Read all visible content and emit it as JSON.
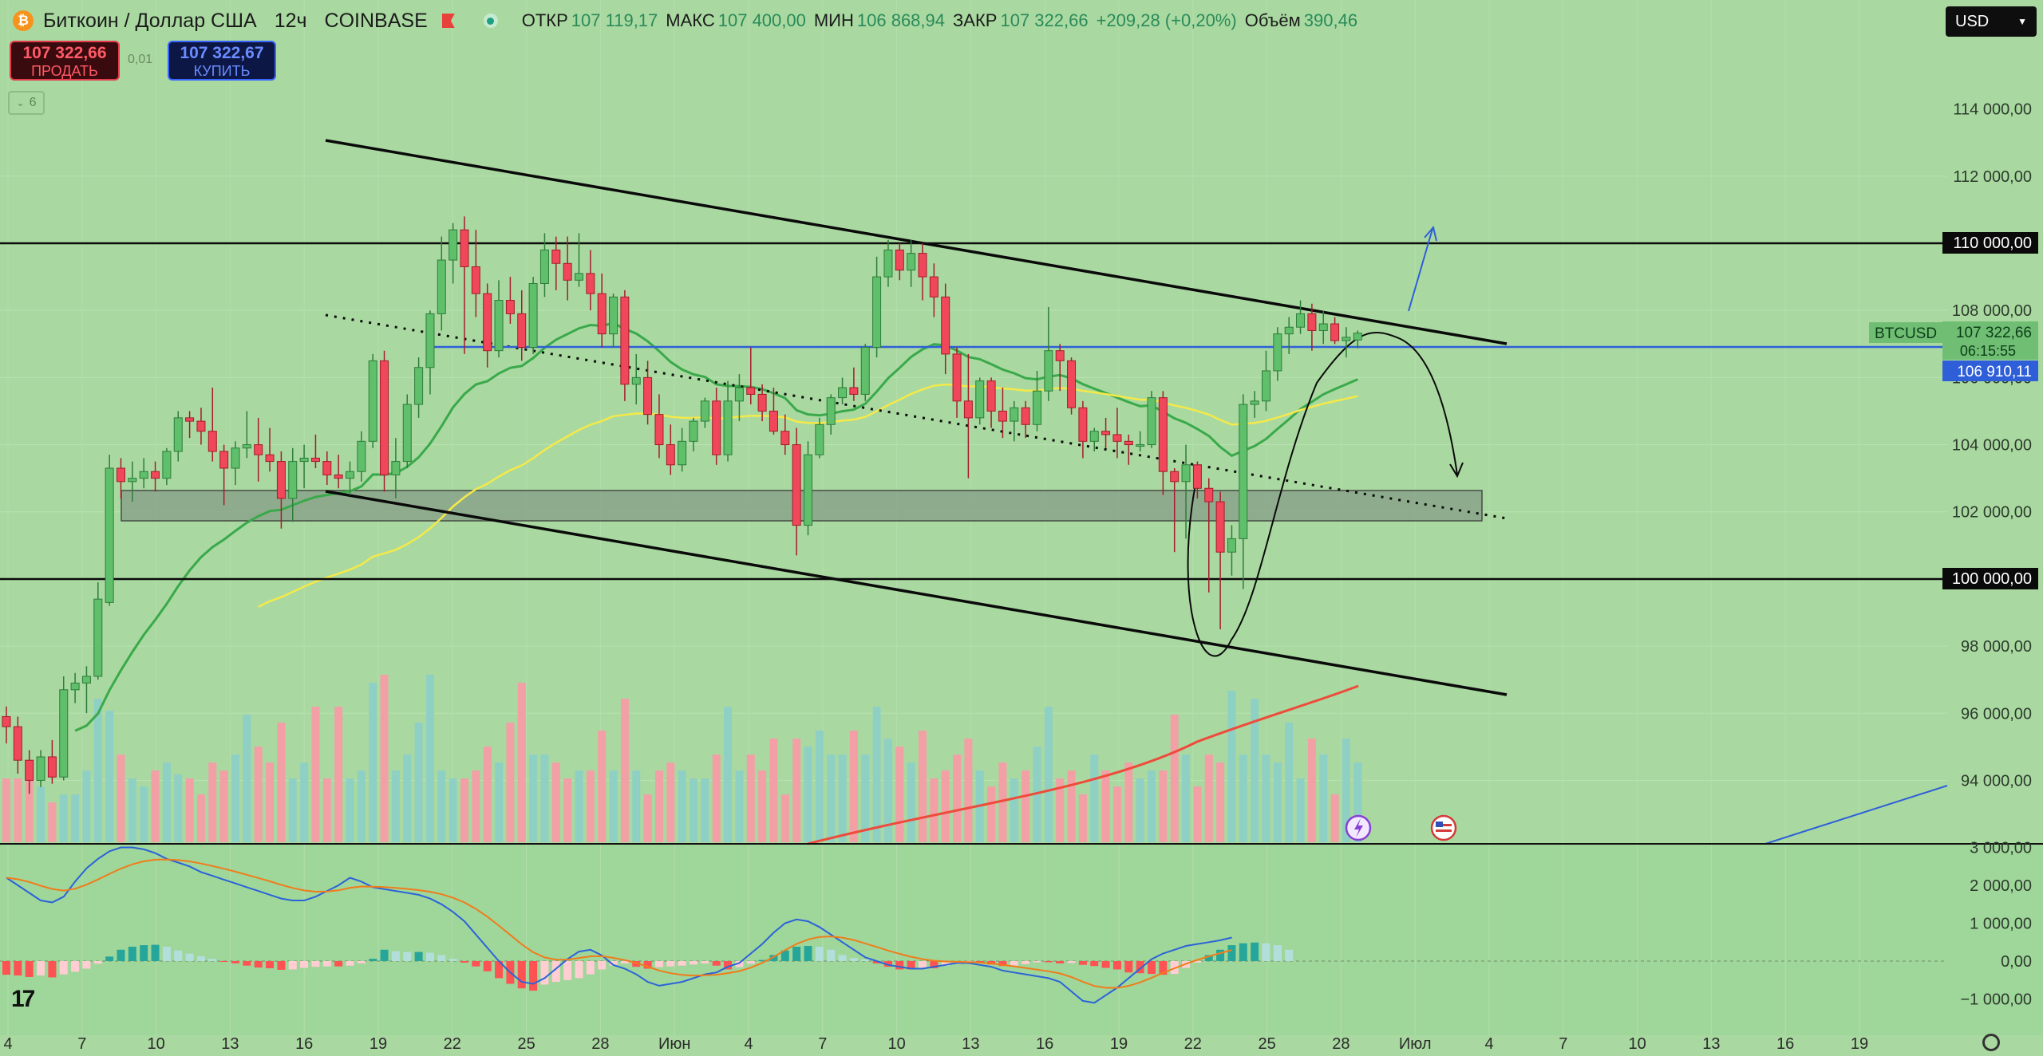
{
  "header": {
    "symbol_icon": "bitcoin-icon",
    "title": "Биткоин / Доллар США",
    "interval": "12ч",
    "exchange": "COINBASE",
    "open_label": "ОТКР",
    "open": "107 119,17",
    "high_label": "МАКС",
    "high": "107 400,00",
    "low_label": "МИН",
    "low": "106 868,94",
    "close_label": "ЗАКР",
    "close": "107 322,66",
    "change": "+209,28 (+0,20%)",
    "volume_label": "Объём",
    "volume": "390,46"
  },
  "orders": {
    "sell_price": "107 322,66",
    "sell_label": "ПРОДАТЬ",
    "spread": "0,01",
    "buy_price": "107 322,67",
    "buy_label": "КУПИТЬ"
  },
  "indicators_count": "6",
  "currency": "USD",
  "colors": {
    "up": "#5fbf6b",
    "down": "#f0475a",
    "ema_green": "#3aa94b",
    "ema_yellow": "#f5e94a",
    "ema_red": "#ee4b3b",
    "blue_line": "#2f5fd8",
    "macd": "#2b63d9",
    "signal": "#f07c1a",
    "bg": "#a9d9a0"
  },
  "chart_data": {
    "type": "candlestick",
    "interval": "12h",
    "x_ticks": [
      "4",
      "7",
      "10",
      "13",
      "16",
      "19",
      "22",
      "25",
      "28",
      "Июн",
      "4",
      "7",
      "10",
      "13",
      "16",
      "19",
      "22",
      "25",
      "28",
      "Июл",
      "4",
      "7",
      "10",
      "13",
      "16",
      "19"
    ],
    "y_ticks": [
      "110 000,00",
      "108 000,00",
      "106 000,00",
      "104 000,00",
      "102 000,00",
      "100 000,00",
      "98 000,00",
      "96 000,00",
      "94 000,00"
    ],
    "ylim": [
      92500,
      116000
    ],
    "ohlc": [
      [
        95900,
        96200,
        95100,
        95600
      ],
      [
        95600,
        95900,
        94200,
        94600
      ],
      [
        94600,
        94900,
        93600,
        94000
      ],
      [
        94000,
        94900,
        93800,
        94700
      ],
      [
        94700,
        95200,
        93900,
        94100
      ],
      [
        94100,
        97100,
        94000,
        96700
      ],
      [
        96700,
        97200,
        96300,
        96900
      ],
      [
        96900,
        97400,
        96000,
        97100
      ],
      [
        97100,
        99900,
        97000,
        99400
      ],
      [
        99300,
        103700,
        99200,
        103300
      ],
      [
        103300,
        103600,
        102400,
        102900
      ],
      [
        102900,
        103500,
        102300,
        103000
      ],
      [
        103000,
        103600,
        102700,
        103200
      ],
      [
        103200,
        103500,
        102600,
        103000
      ],
      [
        103000,
        103900,
        102800,
        103800
      ],
      [
        103800,
        105000,
        103500,
        104800
      ],
      [
        104800,
        105000,
        104200,
        104700
      ],
      [
        104700,
        105100,
        104000,
        104400
      ],
      [
        104400,
        105700,
        103500,
        103800
      ],
      [
        103800,
        104000,
        102200,
        103300
      ],
      [
        103300,
        104100,
        102800,
        103900
      ],
      [
        103900,
        105000,
        103600,
        104000
      ],
      [
        104000,
        104800,
        102900,
        103700
      ],
      [
        103700,
        104500,
        103200,
        103500
      ],
      [
        103500,
        103800,
        101500,
        102400
      ],
      [
        102400,
        103900,
        101700,
        103500
      ],
      [
        103500,
        104000,
        102700,
        103600
      ],
      [
        103600,
        104300,
        103300,
        103500
      ],
      [
        103500,
        103800,
        102800,
        103100
      ],
      [
        103100,
        103700,
        102700,
        103000
      ],
      [
        103000,
        103500,
        102500,
        103200
      ],
      [
        103200,
        104400,
        102900,
        104100
      ],
      [
        104100,
        106700,
        103900,
        106500
      ],
      [
        106500,
        106800,
        102600,
        103100
      ],
      [
        103100,
        104200,
        102400,
        103500
      ],
      [
        103500,
        105500,
        103300,
        105200
      ],
      [
        105200,
        106600,
        104800,
        106300
      ],
      [
        106300,
        108000,
        105500,
        107900
      ],
      [
        107900,
        110200,
        107400,
        109500
      ],
      [
        109500,
        110600,
        108800,
        110400
      ],
      [
        110400,
        110800,
        106700,
        109300
      ],
      [
        109300,
        110400,
        107800,
        108500
      ],
      [
        108500,
        108800,
        106300,
        106800
      ],
      [
        106800,
        108900,
        106600,
        108300
      ],
      [
        108300,
        109000,
        107600,
        107900
      ],
      [
        107900,
        108600,
        106500,
        106900
      ],
      [
        106900,
        109000,
        106700,
        108800
      ],
      [
        108800,
        110300,
        108400,
        109800
      ],
      [
        109800,
        110200,
        108600,
        109400
      ],
      [
        109400,
        110200,
        108300,
        108900
      ],
      [
        108900,
        110300,
        108700,
        109100
      ],
      [
        109100,
        109800,
        108000,
        108500
      ],
      [
        108500,
        109100,
        106900,
        107300
      ],
      [
        107300,
        108500,
        106900,
        108400
      ],
      [
        108400,
        108600,
        105300,
        105800
      ],
      [
        105800,
        106700,
        105200,
        106000
      ],
      [
        106000,
        106500,
        104600,
        104900
      ],
      [
        104900,
        105500,
        103600,
        104000
      ],
      [
        104000,
        104600,
        103100,
        103400
      ],
      [
        103400,
        104500,
        103200,
        104100
      ],
      [
        104100,
        104800,
        103800,
        104700
      ],
      [
        104700,
        105400,
        104500,
        105300
      ],
      [
        105300,
        105700,
        103400,
        103700
      ],
      [
        103700,
        105900,
        103500,
        105300
      ],
      [
        105300,
        106100,
        104700,
        105700
      ],
      [
        105700,
        106900,
        105200,
        105500
      ],
      [
        105500,
        105800,
        104700,
        105000
      ],
      [
        105000,
        105700,
        104300,
        104400
      ],
      [
        104400,
        104900,
        103700,
        104000
      ],
      [
        104000,
        104500,
        100700,
        101600
      ],
      [
        101600,
        104100,
        101300,
        103700
      ],
      [
        103700,
        104800,
        103600,
        104600
      ],
      [
        104600,
        105500,
        104300,
        105400
      ],
      [
        105400,
        106000,
        105200,
        105700
      ],
      [
        105700,
        106300,
        105300,
        105500
      ],
      [
        105500,
        107000,
        105300,
        106900
      ],
      [
        106900,
        109600,
        106600,
        109000
      ],
      [
        109000,
        110100,
        108700,
        109800
      ],
      [
        109800,
        110000,
        108900,
        109200
      ],
      [
        109200,
        110100,
        108700,
        109700
      ],
      [
        109700,
        110000,
        108300,
        109000
      ],
      [
        109000,
        109400,
        107800,
        108400
      ],
      [
        108400,
        108800,
        106100,
        106700
      ],
      [
        106700,
        106900,
        104800,
        105300
      ],
      [
        105300,
        106700,
        103000,
        104800
      ],
      [
        104800,
        106000,
        104600,
        105900
      ],
      [
        105900,
        106000,
        104500,
        105000
      ],
      [
        105000,
        105700,
        104200,
        104700
      ],
      [
        104700,
        105300,
        104100,
        105100
      ],
      [
        105100,
        105300,
        104200,
        104600
      ],
      [
        104600,
        106200,
        104400,
        105600
      ],
      [
        105600,
        108100,
        105300,
        106800
      ],
      [
        106800,
        107000,
        105600,
        106500
      ],
      [
        106500,
        106600,
        104900,
        105100
      ],
      [
        105100,
        105300,
        103600,
        104100
      ],
      [
        104100,
        104500,
        103800,
        104400
      ],
      [
        104400,
        104800,
        103900,
        104300
      ],
      [
        104300,
        105100,
        103600,
        104100
      ],
      [
        104100,
        104300,
        103400,
        104000
      ],
      [
        104000,
        104400,
        103800,
        104000
      ],
      [
        104000,
        105600,
        103900,
        105400
      ],
      [
        105400,
        105600,
        102500,
        103200
      ],
      [
        103200,
        103300,
        100800,
        102900
      ],
      [
        102900,
        104000,
        101200,
        103400
      ],
      [
        103400,
        103500,
        102400,
        102700
      ],
      [
        102700,
        103000,
        99600,
        102300
      ],
      [
        102300,
        102600,
        98500,
        100800
      ],
      [
        100800,
        101600,
        100100,
        101200
      ],
      [
        101200,
        105500,
        99700,
        105200
      ],
      [
        105200,
        105600,
        104800,
        105300
      ],
      [
        105300,
        106800,
        105000,
        106200
      ],
      [
        106200,
        107500,
        105900,
        107300
      ],
      [
        107300,
        107800,
        106700,
        107500
      ],
      [
        107500,
        108300,
        107300,
        107900
      ],
      [
        107900,
        108200,
        106800,
        107400
      ],
      [
        107400,
        108000,
        107000,
        107600
      ],
      [
        107600,
        107800,
        107000,
        107100
      ],
      [
        107100,
        107500,
        106600,
        107200
      ],
      [
        107119,
        107400,
        106869,
        107323
      ]
    ],
    "volume": [
      16,
      16,
      18,
      14,
      10,
      12,
      12,
      18,
      36,
      33,
      22,
      16,
      14,
      18,
      20,
      17,
      16,
      12,
      20,
      18,
      22,
      32,
      24,
      20,
      30,
      16,
      20,
      34,
      16,
      34,
      16,
      18,
      40,
      42,
      18,
      22,
      30,
      42,
      18,
      16,
      16,
      18,
      24,
      20,
      30,
      40,
      22,
      22,
      20,
      16,
      18,
      18,
      28,
      18,
      36,
      18,
      12,
      18,
      20,
      18,
      16,
      16,
      22,
      34,
      18,
      22,
      18,
      26,
      12,
      26,
      24,
      28,
      22,
      22,
      28,
      22,
      34,
      26,
      24,
      20,
      28,
      16,
      18,
      22,
      26,
      18,
      14,
      20,
      16,
      18,
      24,
      34,
      16,
      18,
      12,
      22,
      18,
      14,
      20,
      16,
      18,
      18,
      32,
      22,
      14,
      22,
      20,
      38,
      22,
      36,
      22,
      20,
      30,
      16,
      26,
      22,
      12,
      26,
      20,
      18
    ],
    "macd": [
      -360,
      -380,
      -420,
      -380,
      -430,
      -350,
      -280,
      -200,
      -70,
      120,
      300,
      380,
      420,
      430,
      380,
      280,
      200,
      130,
      60,
      -20,
      -60,
      -120,
      -170,
      -190,
      -230,
      -220,
      -180,
      -150,
      -140,
      -140,
      -120,
      -60,
      60,
      300,
      260,
      240,
      240,
      220,
      160,
      60,
      -40,
      -140,
      -270,
      -450,
      -600,
      -720,
      -780,
      -620,
      -550,
      -500,
      -450,
      -350,
      -220,
      -120,
      -60,
      -150,
      -200,
      -160,
      -140,
      -120,
      -90,
      -60,
      -120,
      -220,
      -160,
      -70,
      30,
      160,
      280,
      380,
      400,
      380,
      300,
      160,
      80,
      40,
      -60,
      -150,
      -220,
      -220,
      -180,
      -190,
      -120,
      -80,
      -40,
      -40,
      -90,
      -130,
      -120,
      -80,
      -30,
      -30,
      -60,
      -50,
      -100,
      -130,
      -180,
      -220,
      -300,
      -320,
      -340,
      -360,
      -340,
      -180,
      -40,
      160,
      300,
      420,
      470,
      490,
      470,
      420,
      300
    ],
    "macd_line": [
      2200,
      2000,
      1800,
      1600,
      1550,
      1700,
      2100,
      2450,
      2700,
      2900,
      3000,
      3000,
      2950,
      2850,
      2700,
      2600,
      2500,
      2350,
      2250,
      2150,
      2050,
      1950,
      1850,
      1750,
      1650,
      1600,
      1600,
      1700,
      1850,
      2000,
      2200,
      2100,
      1950,
      1900,
      1850,
      1800,
      1750,
      1650,
      1500,
      1300,
      1050,
      700,
      350,
      0,
      -300,
      -550,
      -600,
      -450,
      -200,
      50,
      250,
      300,
      150,
      -100,
      -200,
      -350,
      -550,
      -650,
      -600,
      -550,
      -450,
      -350,
      -300,
      -150,
      -50,
      200,
      450,
      750,
      1000,
      1100,
      1050,
      900,
      700,
      500,
      300,
      100,
      0,
      -100,
      -150,
      -200,
      -200,
      -150,
      -100,
      -50,
      -50,
      -100,
      -150,
      -250,
      -300,
      -350,
      -400,
      -450,
      -550,
      -800,
      -1050,
      -1100,
      -900,
      -700,
      -450,
      -200,
      50,
      200,
      300,
      400,
      450,
      500,
      550,
      620
    ]
  }
}
